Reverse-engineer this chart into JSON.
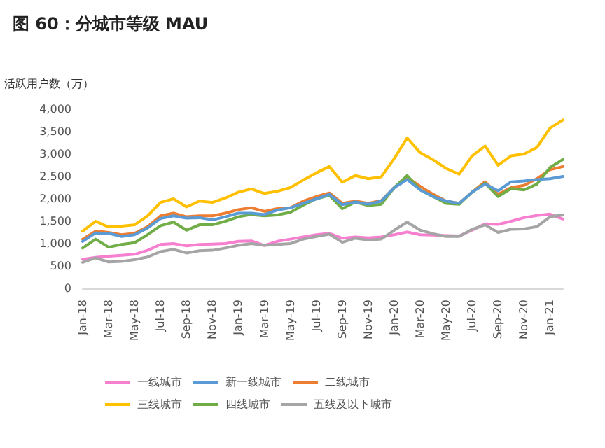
{
  "chart_data": {
    "type": "line",
    "title": "图 60：分城市等级 MAU",
    "ylabel": "活跃用户数（万）",
    "categories": [
      "Jan-18",
      null,
      "Mar-18",
      null,
      "May-18",
      null,
      "Jul-18",
      null,
      "Sep-18",
      null,
      "Nov-18",
      null,
      "Jan-19",
      null,
      "Mar-19",
      null,
      "May-19",
      null,
      "Jul-19",
      null,
      "Sep-19",
      null,
      "Nov-19",
      null,
      "Jan-20",
      null,
      "Mar-20",
      null,
      "May-20",
      null,
      "Jul-20",
      null,
      "Sep-20",
      null,
      "Nov-20",
      null,
      "Jan-21",
      null
    ],
    "series": [
      {
        "name": "一线城市",
        "color": "#f77fd0",
        "values": [
          650,
          690,
          720,
          740,
          760,
          850,
          980,
          1000,
          950,
          980,
          990,
          1000,
          1050,
          1060,
          960,
          1050,
          1100,
          1150,
          1200,
          1230,
          1120,
          1150,
          1130,
          1150,
          1200,
          1260,
          1200,
          1190,
          1180,
          1170,
          1300,
          1440,
          1430,
          1500,
          1580,
          1630,
          1660,
          1550
        ]
      },
      {
        "name": "新一线城市",
        "color": "#5b9bd5",
        "values": [
          1050,
          1240,
          1230,
          1160,
          1200,
          1350,
          1560,
          1620,
          1570,
          1580,
          1530,
          1600,
          1680,
          1680,
          1650,
          1750,
          1800,
          1900,
          2000,
          2100,
          1870,
          1930,
          1880,
          1950,
          2250,
          2430,
          2200,
          2050,
          1950,
          1900,
          2150,
          2330,
          2180,
          2380,
          2400,
          2430,
          2450,
          2500
        ]
      },
      {
        "name": "二线城市",
        "color": "#ed7d31",
        "values": [
          1100,
          1280,
          1250,
          1200,
          1230,
          1380,
          1620,
          1680,
          1600,
          1620,
          1620,
          1680,
          1760,
          1800,
          1720,
          1780,
          1800,
          1950,
          2050,
          2130,
          1900,
          1950,
          1900,
          1960,
          2250,
          2480,
          2280,
          2100,
          1950,
          1900,
          2150,
          2380,
          2100,
          2250,
          2300,
          2450,
          2650,
          2720
        ]
      },
      {
        "name": "三线城市",
        "color": "#ffc000",
        "values": [
          1280,
          1500,
          1370,
          1390,
          1420,
          1620,
          1920,
          2000,
          1820,
          1950,
          1920,
          2020,
          2150,
          2220,
          2120,
          2170,
          2250,
          2420,
          2580,
          2720,
          2370,
          2520,
          2450,
          2490,
          2900,
          3360,
          3030,
          2870,
          2680,
          2550,
          2960,
          3180,
          2750,
          2960,
          3000,
          3150,
          3580,
          3760
        ]
      },
      {
        "name": "四线城市",
        "color": "#70ad47",
        "values": [
          900,
          1100,
          920,
          980,
          1020,
          1200,
          1400,
          1480,
          1300,
          1420,
          1420,
          1500,
          1600,
          1650,
          1620,
          1640,
          1700,
          1860,
          2000,
          2080,
          1780,
          1930,
          1850,
          1880,
          2250,
          2520,
          2200,
          2050,
          1900,
          1880,
          2150,
          2350,
          2050,
          2230,
          2200,
          2330,
          2700,
          2880
        ]
      },
      {
        "name": "五线及以下城市",
        "color": "#a5a5a5",
        "values": [
          580,
          680,
          590,
          600,
          640,
          700,
          820,
          870,
          790,
          840,
          850,
          900,
          960,
          1000,
          960,
          980,
          1000,
          1100,
          1160,
          1210,
          1030,
          1120,
          1080,
          1100,
          1300,
          1480,
          1300,
          1220,
          1160,
          1160,
          1320,
          1420,
          1250,
          1320,
          1330,
          1380,
          1600,
          1640
        ]
      }
    ],
    "ylim": [
      0,
      4000
    ],
    "yticks": [
      0,
      500,
      {
        "value": 1000,
        "label": "1,000"
      },
      {
        "value": 1500,
        "label": "1,500"
      },
      {
        "value": 2000,
        "label": "2,000"
      },
      {
        "value": 2500,
        "label": "2,500"
      },
      {
        "value": 3000,
        "label": "3,000"
      },
      {
        "value": 3500,
        "label": "3,500"
      },
      {
        "value": 4000,
        "label": "4,000"
      }
    ],
    "grid": false,
    "legend": "bottom",
    "marker": "none",
    "line_style": "solid"
  }
}
